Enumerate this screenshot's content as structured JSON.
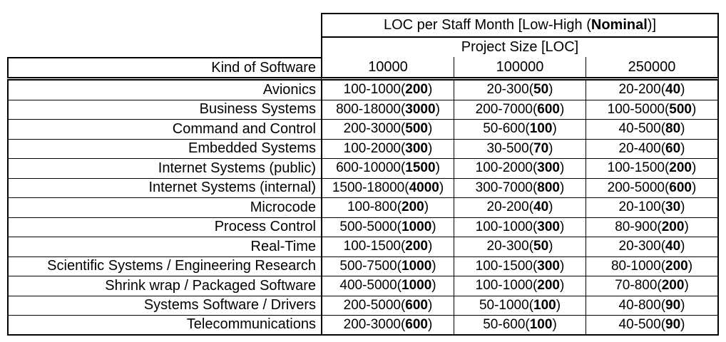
{
  "page": {
    "background": "#ffffff",
    "text_color": "#000000",
    "border_color": "#000000"
  },
  "table": {
    "title": {
      "pre": "LOC per Staff Month [Low-High (",
      "bold": "Nominal",
      "post": ")]"
    },
    "subtitle": "Project Size [LOC]",
    "corner_header": "Kind of Software",
    "column_headers": [
      "10000",
      "100000",
      "250000"
    ],
    "cell_format": {
      "open": "(",
      "close": ")"
    },
    "rows": [
      {
        "label": "Avionics",
        "cells": [
          {
            "range": "100-1000",
            "nominal": "200"
          },
          {
            "range": "20-300",
            "nominal": "50"
          },
          {
            "range": "20-200",
            "nominal": "40"
          }
        ]
      },
      {
        "label": "Business Systems",
        "cells": [
          {
            "range": "800-18000",
            "nominal": "3000"
          },
          {
            "range": "200-7000",
            "nominal": "600"
          },
          {
            "range": "100-5000",
            "nominal": "500"
          }
        ]
      },
      {
        "label": "Command and Control",
        "cells": [
          {
            "range": "200-3000",
            "nominal": "500"
          },
          {
            "range": "50-600",
            "nominal": "100"
          },
          {
            "range": "40-500",
            "nominal": "80"
          }
        ]
      },
      {
        "label": "Embedded Systems",
        "cells": [
          {
            "range": "100-2000",
            "nominal": "300"
          },
          {
            "range": "30-500",
            "nominal": "70"
          },
          {
            "range": "20-400",
            "nominal": "60"
          }
        ]
      },
      {
        "label": "Internet Systems (public)",
        "cells": [
          {
            "range": "600-10000",
            "nominal": "1500"
          },
          {
            "range": "100-2000",
            "nominal": "300"
          },
          {
            "range": "100-1500",
            "nominal": "200"
          }
        ]
      },
      {
        "label": "Internet Systems (internal)",
        "cells": [
          {
            "range": "1500-18000",
            "nominal": "4000"
          },
          {
            "range": "300-7000",
            "nominal": "800"
          },
          {
            "range": "200-5000",
            "nominal": "600"
          }
        ]
      },
      {
        "label": "Microcode",
        "cells": [
          {
            "range": "100-800",
            "nominal": "200"
          },
          {
            "range": "20-200",
            "nominal": "40"
          },
          {
            "range": "20-100",
            "nominal": "30"
          }
        ]
      },
      {
        "label": "Process Control",
        "cells": [
          {
            "range": "500-5000",
            "nominal": "1000"
          },
          {
            "range": "100-1000",
            "nominal": "300"
          },
          {
            "range": "80-900",
            "nominal": "200"
          }
        ]
      },
      {
        "label": "Real-Time",
        "cells": [
          {
            "range": "100-1500",
            "nominal": "200"
          },
          {
            "range": "20-300",
            "nominal": "50"
          },
          {
            "range": "20-300",
            "nominal": "40"
          }
        ]
      },
      {
        "label": "Scientific Systems / Engineering Research",
        "cells": [
          {
            "range": "500-7500",
            "nominal": "1000"
          },
          {
            "range": "100-1500",
            "nominal": "300"
          },
          {
            "range": "80-1000",
            "nominal": "200"
          }
        ]
      },
      {
        "label": "Shrink wrap / Packaged Software",
        "cells": [
          {
            "range": "400-5000",
            "nominal": "1000"
          },
          {
            "range": "100-1000",
            "nominal": "200"
          },
          {
            "range": "70-800",
            "nominal": "200"
          }
        ]
      },
      {
        "label": "Systems Software / Drivers",
        "cells": [
          {
            "range": "200-5000",
            "nominal": "600"
          },
          {
            "range": "50-1000",
            "nominal": "100"
          },
          {
            "range": "40-800",
            "nominal": "90"
          }
        ]
      },
      {
        "label": "Telecommunications",
        "cells": [
          {
            "range": "200-3000",
            "nominal": "600"
          },
          {
            "range": "50-600",
            "nominal": "100"
          },
          {
            "range": "40-500",
            "nominal": "90"
          }
        ]
      }
    ]
  }
}
